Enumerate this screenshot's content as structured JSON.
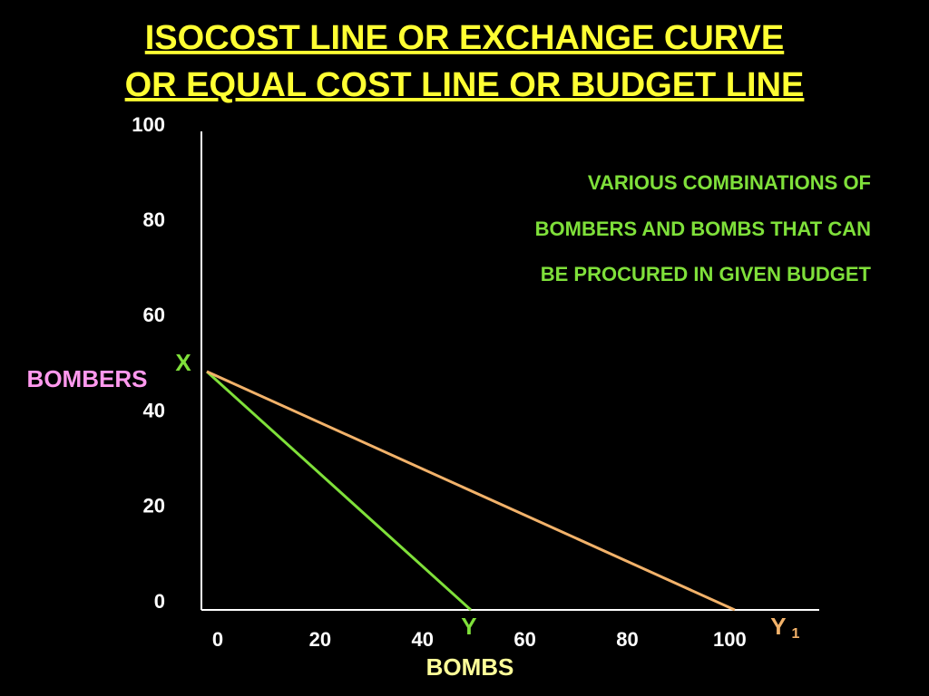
{
  "chart_data": {
    "type": "line",
    "title_lines": [
      "ISOCOST LINE OR EXCHANGE CURVE",
      "OR EQUAL COST LINE OR BUDGET LINE"
    ],
    "annotation_lines": [
      "VARIOUS COMBINATIONS OF",
      "BOMBERS AND BOMBS THAT CAN",
      "BE PROCURED IN GIVEN BUDGET"
    ],
    "xlabel": "BOMBS",
    "ylabel": "BOMBERS",
    "xlim": [
      0,
      116
    ],
    "ylim": [
      0,
      100
    ],
    "xticks": [
      0,
      20,
      40,
      60,
      80,
      100
    ],
    "yticks": [
      0,
      20,
      40,
      60,
      80,
      100
    ],
    "grid": false,
    "series": [
      {
        "color": "#7fe03a",
        "x": [
          0,
          50
        ],
        "values": [
          50,
          0
        ]
      },
      {
        "color": "#f2b26a",
        "x": [
          0,
          100
        ],
        "values": [
          50,
          0
        ]
      }
    ],
    "point_labels": [
      {
        "text": "X",
        "x": 0,
        "y": 50,
        "color": "#7fe03a"
      },
      {
        "text": "Y",
        "x": 50,
        "y": 0,
        "color": "#7fe03a"
      },
      {
        "text": "Y",
        "subscript": "1",
        "x": 100,
        "y": 0,
        "color": "#f2b26a"
      }
    ]
  }
}
